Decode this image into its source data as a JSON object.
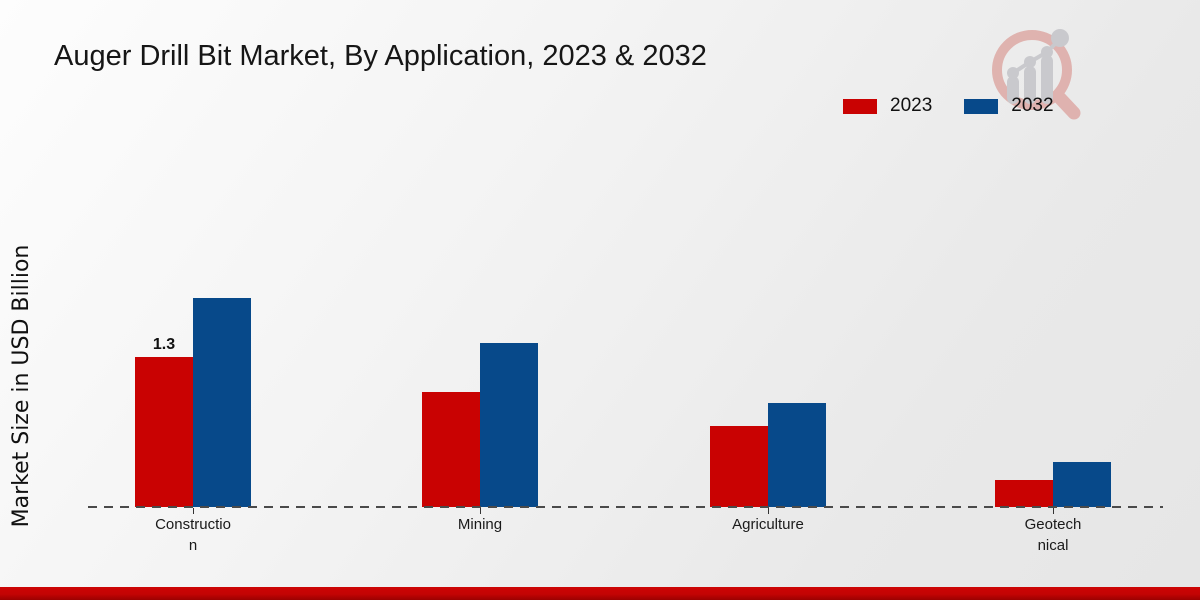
{
  "page": {
    "title": "Auger Drill Bit Market, By Application, 2023 & 2032"
  },
  "y_axis": {
    "label": "Market Size in USD Billion"
  },
  "legend": {
    "items": [
      {
        "label": "2023",
        "color": "#c90202"
      },
      {
        "label": "2032",
        "color": "#07498a"
      }
    ]
  },
  "chart_data": {
    "type": "bar",
    "title": "Auger Drill Bit Market, By Application, 2023 & 2032",
    "categories": [
      "Construction",
      "Mining",
      "Agriculture",
      "Geotechnical"
    ],
    "category_label_lines": [
      [
        "Constructio",
        "n"
      ],
      [
        "Mining"
      ],
      [
        "Agriculture"
      ],
      [
        "Geotech",
        "nical"
      ]
    ],
    "series": [
      {
        "name": "2023",
        "color": "#c90202",
        "values": [
          1.3,
          1.0,
          0.7,
          0.23
        ]
      },
      {
        "name": "2032",
        "color": "#07498a",
        "values": [
          1.81,
          1.42,
          0.9,
          0.39
        ]
      }
    ],
    "bar_value_labels": [
      {
        "series": "2023",
        "category": "Construction",
        "text": "1.3"
      }
    ],
    "xlabel": "",
    "ylabel": "Market Size in USD Billion",
    "ylim": [
      0,
      2
    ],
    "grid": false,
    "legend_position": "top-right",
    "axis_line_style": "dashed"
  },
  "branding": {
    "logo_name": "magnifier-bar-chart-logo",
    "logo_ring_color": "#dfb0ac",
    "logo_bar_color": "#c8c8cc"
  },
  "footer": {
    "accent_color": "#c30404"
  }
}
